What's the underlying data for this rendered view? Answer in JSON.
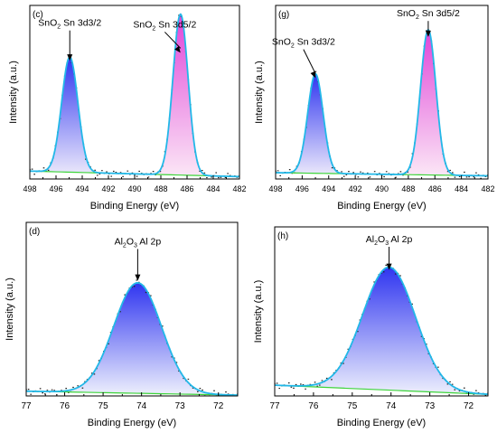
{
  "colors": {
    "envelope": "#22b8e8",
    "background": "#3dd43a",
    "raw": "#222222",
    "sn_3d32_top": "#2f35f0",
    "sn_3d32_bottom": "#e9e6fb",
    "sn_3d52_top": "#e044d8",
    "sn_3d52_bottom": "#fbe6f6",
    "al_top": "#2f35f0",
    "al_bottom": "#eef0fd"
  },
  "chart_data": [
    {
      "panel_label": "(c)",
      "type": "area",
      "xlabel": "Binding Energy (eV)",
      "ylabel": "Intensity (a.u.)",
      "xlim": [
        498,
        482
      ],
      "x_ticks": [
        498,
        496,
        494,
        492,
        490,
        488,
        486,
        484,
        482
      ],
      "x_tick_labels": [
        "498",
        "496",
        "494",
        "492",
        "490",
        "488",
        "486",
        "484",
        "482"
      ],
      "ylim": [
        0,
        1.1
      ],
      "background": {
        "left": 0.05,
        "right": 0.015
      },
      "peaks": [
        {
          "name": "SnO₂ Sn 3d3/2",
          "label_main": "SnO",
          "label_sub": "2",
          "label_rest": " Sn 3d3/2",
          "center": 494.95,
          "height": 0.73,
          "width": 0.62,
          "fill": "blue",
          "label_x": 494.95,
          "label_y": 0.97,
          "arrow_tip_y": 0.75
        },
        {
          "name": "SnO₂ Sn 3d5/2",
          "label_main": "SnO",
          "label_sub": "2",
          "label_rest": " Sn 3d5/2",
          "center": 486.5,
          "height": 1.02,
          "width": 0.58,
          "fill": "pink",
          "label_x": 487.7,
          "label_y": 0.96,
          "arrow_tip_y": 0.8
        }
      ]
    },
    {
      "panel_label": "(g)",
      "type": "area",
      "xlabel": "Binding Energy (eV)",
      "ylabel": "Intensity (a.u.)",
      "xlim": [
        498,
        482
      ],
      "x_ticks": [
        498,
        496,
        494,
        492,
        490,
        488,
        486,
        484,
        482
      ],
      "x_tick_labels": [
        "498",
        "496",
        "494",
        "492",
        "490",
        "488",
        "486",
        "484",
        "482"
      ],
      "ylim": [
        0,
        1.1
      ],
      "background": {
        "left": 0.04,
        "right": 0.02
      },
      "peaks": [
        {
          "name": "SnO₂ Sn 3d3/2",
          "label_main": "SnO",
          "label_sub": "2",
          "label_rest": " Sn 3d3/2",
          "center": 495.0,
          "height": 0.63,
          "width": 0.58,
          "fill": "blue",
          "label_x": 495.9,
          "label_y": 0.85,
          "arrow_tip_y": 0.64
        },
        {
          "name": "SnO₂ Sn 3d5/2",
          "label_main": "SnO",
          "label_sub": "2",
          "label_rest": " Sn 3d5/2",
          "center": 486.5,
          "height": 0.92,
          "width": 0.58,
          "fill": "pink",
          "label_x": 486.5,
          "label_y": 1.03,
          "arrow_tip_y": 0.9
        }
      ]
    },
    {
      "panel_label": "(d)",
      "type": "area",
      "xlabel": "Binding Energy (eV)",
      "ylabel": "Intensity (a.u.)",
      "xlim": [
        77,
        71.5
      ],
      "x_ticks": [
        77,
        76,
        75,
        74,
        73,
        72
      ],
      "x_tick_labels": [
        "77",
        "76",
        "75",
        "74",
        "73",
        "72"
      ],
      "ylim": [
        0,
        1.1
      ],
      "background": {
        "left": 0.03,
        "right": 0.005
      },
      "peaks": [
        {
          "name": "Al₂O₃ Al 2p",
          "label_main": "Al",
          "label_sub": "2",
          "label_rest": "O",
          "label_sub2": "3",
          "label_rest2": " Al 2p",
          "center": 74.1,
          "height": 0.7,
          "width": 0.62,
          "fill": "al",
          "label_x": 74.1,
          "label_y": 0.96,
          "arrow_tip_y": 0.73
        }
      ]
    },
    {
      "panel_label": "(h)",
      "type": "area",
      "xlabel": "Binding Energy (eV)",
      "ylabel": "Intensity (a.u.)",
      "xlim": [
        77,
        71.5
      ],
      "x_ticks": [
        77,
        76,
        75,
        74,
        73,
        72
      ],
      "x_tick_labels": [
        "77",
        "76",
        "75",
        "74",
        "73",
        "72"
      ],
      "ylim": [
        0,
        1.1
      ],
      "background": {
        "left": 0.07,
        "right": 0.01
      },
      "peaks": [
        {
          "name": "Al₂O₃ Al 2p",
          "label_main": "Al",
          "label_sub": "2",
          "label_rest": "O",
          "label_sub2": "3",
          "label_rest2": " Al 2p",
          "center": 74.05,
          "height": 0.8,
          "width": 0.68,
          "fill": "al",
          "label_x": 74.05,
          "label_y": 1.0,
          "arrow_tip_y": 0.82
        }
      ]
    }
  ]
}
